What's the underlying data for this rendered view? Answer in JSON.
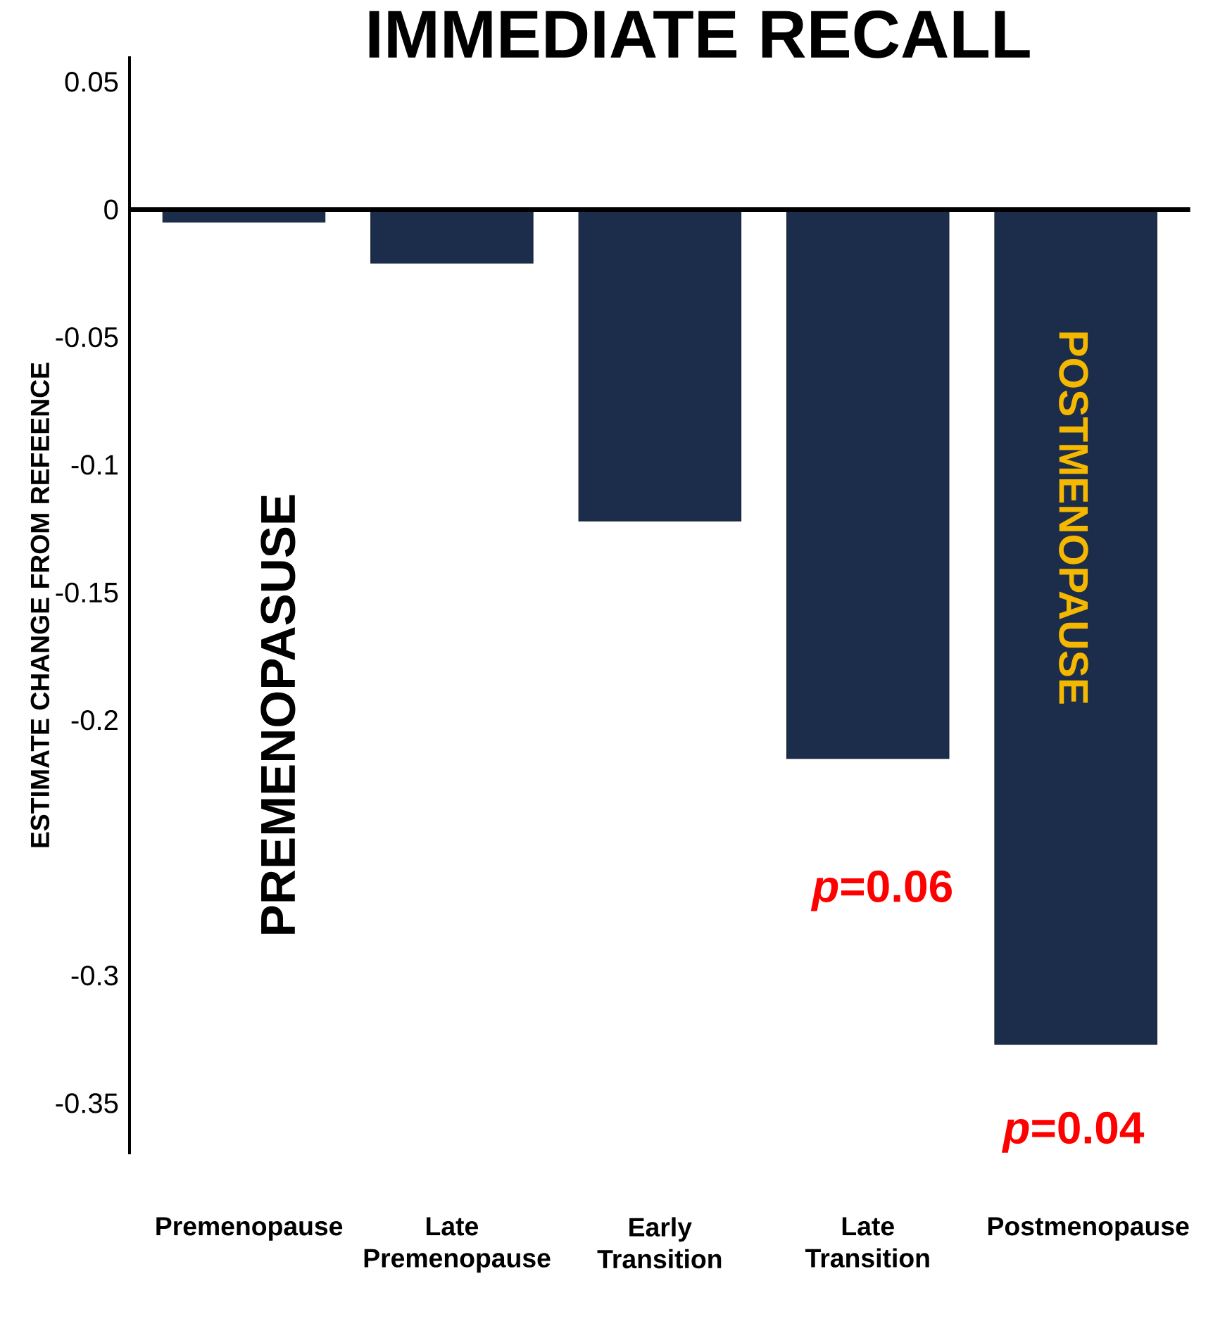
{
  "chart_data": {
    "type": "bar",
    "title": "IMMEDIATE RECALL",
    "ylabel": "ESTIMATE CHANGE FROM REFEENCE",
    "categories": [
      "Premenopause",
      "Late Premenopause",
      "Early Transition",
      "Late Transition",
      "Postmenopause"
    ],
    "values": [
      -0.005,
      -0.021,
      -0.122,
      -0.215,
      -0.327
    ],
    "color": "#1b2d4a",
    "ylim": [
      -0.37,
      0.06
    ],
    "yticks": [
      0.05,
      0,
      -0.05,
      -0.1,
      -0.15,
      -0.2,
      -0.3,
      -0.35
    ],
    "ref_lines": [
      {
        "axis": "y",
        "value": 0,
        "color": "#000000"
      }
    ],
    "annotations": [
      "PREMENOPASUSE",
      "POSTMENOPAUSE",
      "*p*=0.06",
      "*p*=0.04"
    ]
  }
}
